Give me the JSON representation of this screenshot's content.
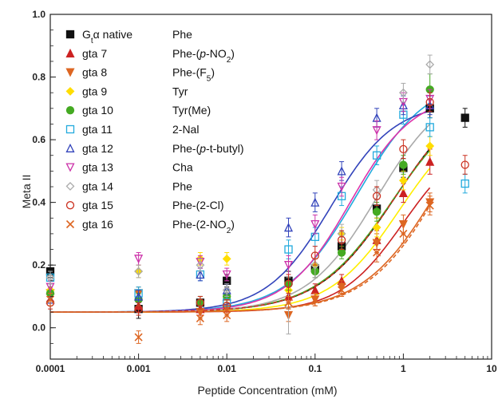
{
  "chart_data": {
    "type": "scatter",
    "title": "",
    "xlabel": "Peptide Concentration (mM)",
    "ylabel": "Meta II",
    "x_scale": "log",
    "xlim": [
      0.0001,
      10
    ],
    "ylim": [
      -0.1,
      1.0
    ],
    "x_ticks": [
      0.0001,
      0.001,
      0.01,
      0.1,
      1,
      10
    ],
    "x_tick_labels": [
      "0.0001",
      "0.001",
      "0.01",
      "0.1",
      "1",
      "10"
    ],
    "y_ticks": [
      0.0,
      0.2,
      0.4,
      0.6,
      0.8,
      1.0
    ],
    "y_tick_labels": [
      "0.0",
      "0.2",
      "0.4",
      "0.6",
      "0.8",
      "1.0"
    ],
    "legend_position": "top-left",
    "series": [
      {
        "name": "Gtα native",
        "label2": "Phe",
        "marker": "square-filled",
        "color": "#111111",
        "x": [
          0.0001,
          0.001,
          0.005,
          0.01,
          0.05,
          0.1,
          0.2,
          0.5,
          1,
          2,
          5
        ],
        "y": [
          0.18,
          0.06,
          0.08,
          0.15,
          0.15,
          0.19,
          0.26,
          0.38,
          0.51,
          0.7,
          0.67
        ],
        "err": [
          0.02,
          0.03,
          0.02,
          0.02,
          0.03,
          0.03,
          0.03,
          0.03,
          0.03,
          0.03,
          0.03
        ],
        "curve": {
          "color": "#000000",
          "max": 0.78,
          "ec50": 0.8,
          "hill": 1.0,
          "dashed": false
        }
      },
      {
        "name": "gta 7",
        "label2": "Phe-(p-NO2)",
        "marker": "triangle-filled",
        "color": "#cc2222",
        "x": [
          0.0001,
          0.001,
          0.005,
          0.01,
          0.05,
          0.1,
          0.2,
          0.5,
          1,
          2
        ],
        "y": [
          0.12,
          0.07,
          0.06,
          0.1,
          0.1,
          0.12,
          0.15,
          0.28,
          0.43,
          0.53
        ],
        "err": [
          0.02,
          0.02,
          0.02,
          0.02,
          0.02,
          0.02,
          0.02,
          0.03,
          0.03,
          0.04
        ],
        "curve": {
          "color": "#cc2222",
          "max": 0.62,
          "ec50": 1.0,
          "hill": 1.2,
          "dashed": false
        }
      },
      {
        "name": "gta 8",
        "label2": "Phe-(F5)",
        "marker": "triangle-down-filled",
        "color": "#dd6622",
        "x": [
          0.0001,
          0.001,
          0.005,
          0.01,
          0.05,
          0.1,
          0.2,
          0.5,
          1,
          2
        ],
        "y": [
          0.11,
          0.11,
          0.05,
          0.06,
          0.04,
          0.09,
          0.13,
          0.27,
          0.33,
          0.4
        ],
        "err": [
          0.02,
          0.02,
          0.02,
          0.02,
          0.02,
          0.02,
          0.02,
          0.03,
          0.03,
          0.03
        ],
        "curve": {
          "color": "#dd6622",
          "max": 0.9,
          "ec50": 3.0,
          "hill": 1.0,
          "dashed": true
        }
      },
      {
        "name": "gta 9",
        "label2": "Tyr",
        "marker": "diamond-filled",
        "color": "#ffdd00",
        "x": [
          0.0001,
          0.001,
          0.005,
          0.01,
          0.05,
          0.1,
          0.2,
          0.5,
          1,
          2
        ],
        "y": [
          0.12,
          0.18,
          0.22,
          0.22,
          0.12,
          0.2,
          0.3,
          0.32,
          0.47,
          0.58
        ],
        "err": [
          0.02,
          0.02,
          0.02,
          0.02,
          0.02,
          0.02,
          0.02,
          0.03,
          0.03,
          0.03
        ],
        "curve": {
          "color": "#ffee00",
          "max": 0.7,
          "ec50": 0.9,
          "hill": 1.1,
          "dashed": false
        }
      },
      {
        "name": "gta 10",
        "label2": "Tyr(Me)",
        "marker": "circle-filled",
        "color": "#44aa22",
        "x": [
          0.0001,
          0.001,
          0.005,
          0.01,
          0.05,
          0.1,
          0.2,
          0.5,
          1,
          2
        ],
        "y": [
          0.11,
          0.09,
          0.08,
          0.1,
          0.14,
          0.18,
          0.24,
          0.37,
          0.52,
          0.76
        ],
        "err": [
          0.02,
          0.02,
          0.02,
          0.02,
          0.02,
          0.02,
          0.02,
          0.03,
          0.03,
          0.05
        ],
        "curve": {
          "color": "#44aa22",
          "max": 0.76,
          "ec50": 0.75,
          "hill": 1.0,
          "dashed": false
        }
      },
      {
        "name": "gta 11",
        "label2": "2-Nal",
        "marker": "square-open",
        "color": "#22aadd",
        "x": [
          0.0001,
          0.001,
          0.005,
          0.01,
          0.05,
          0.1,
          0.2,
          0.5,
          1,
          2,
          5
        ],
        "y": [
          0.16,
          0.11,
          0.17,
          0.08,
          0.25,
          0.29,
          0.42,
          0.55,
          0.68,
          0.64,
          0.46
        ],
        "err": [
          0.02,
          0.02,
          0.02,
          0.02,
          0.03,
          0.03,
          0.03,
          0.03,
          0.03,
          0.03,
          0.03
        ],
        "curve": {
          "color": "#22aadd",
          "max": 0.8,
          "ec50": 0.3,
          "hill": 1.1,
          "dashed": false
        }
      },
      {
        "name": "gta 12",
        "label2": "Phe-(p-t-butyl)",
        "marker": "triangle-open",
        "color": "#3344bb",
        "x": [
          0.0001,
          0.001,
          0.005,
          0.01,
          0.05,
          0.1,
          0.2,
          0.5,
          1,
          2
        ],
        "y": [
          0.09,
          0.1,
          0.17,
          0.12,
          0.32,
          0.4,
          0.5,
          0.67,
          0.71,
          0.71
        ],
        "err": [
          0.02,
          0.02,
          0.02,
          0.02,
          0.03,
          0.03,
          0.03,
          0.03,
          0.03,
          0.03
        ],
        "curve": {
          "color": "#3344bb",
          "max": 0.72,
          "ec50": 0.15,
          "hill": 1.2,
          "dashed": false
        }
      },
      {
        "name": "gta 13",
        "label2": "Cha",
        "marker": "triangle-down-open",
        "color": "#cc33aa",
        "x": [
          0.0001,
          0.001,
          0.005,
          0.01,
          0.05,
          0.1,
          0.2,
          0.5,
          1,
          2
        ],
        "y": [
          0.13,
          0.22,
          0.21,
          0.17,
          0.2,
          0.33,
          0.45,
          0.63,
          0.72,
          0.73
        ],
        "err": [
          0.02,
          0.02,
          0.02,
          0.02,
          0.03,
          0.03,
          0.03,
          0.03,
          0.03,
          0.03
        ],
        "curve": {
          "color": "#dd33aa",
          "max": 0.75,
          "ec50": 0.25,
          "hill": 1.2,
          "dashed": false
        }
      },
      {
        "name": "gta 14",
        "label2": "Phe",
        "marker": "diamond-open",
        "color": "#aaaaaa",
        "x": [
          0.0001,
          0.001,
          0.005,
          0.01,
          0.05,
          0.1,
          0.2,
          0.5,
          1,
          2
        ],
        "y": [
          0.16,
          0.18,
          0.2,
          0.12,
          0.07,
          0.2,
          0.3,
          0.44,
          0.75,
          0.84
        ],
        "err": [
          0.02,
          0.02,
          0.02,
          0.02,
          0.09,
          0.04,
          0.03,
          0.03,
          0.03,
          0.03
        ],
        "curve": {
          "color": "#aaaaaa",
          "max": 0.78,
          "ec50": 0.5,
          "hill": 1.1,
          "dashed": false
        }
      },
      {
        "name": "gta 15",
        "label2": "Phe-(2-Cl)",
        "marker": "circle-open",
        "color": "#cc3322",
        "x": [
          0.0001,
          0.001,
          0.005,
          0.01,
          0.05,
          0.1,
          0.2,
          0.5,
          1,
          2,
          5
        ],
        "y": [
          0.08,
          0.06,
          0.08,
          0.07,
          0.14,
          0.23,
          0.28,
          0.42,
          0.57,
          0.72,
          0.52
        ],
        "err": [
          0.02,
          0.02,
          0.02,
          0.02,
          0.03,
          0.03,
          0.03,
          0.03,
          0.03,
          0.03,
          0.03
        ],
        "curve": {
          "color": "#cc3322",
          "max": 0.78,
          "ec50": 0.8,
          "hill": 1.0,
          "dashed": true
        }
      },
      {
        "name": "gta 16",
        "label2": "Phe-(2-NO2)",
        "marker": "x",
        "color": "#dd6622",
        "x": [
          0.0001,
          0.001,
          0.005,
          0.01,
          0.05,
          0.1,
          0.2,
          0.5,
          1,
          2
        ],
        "y": [
          0.09,
          -0.03,
          0.03,
          0.04,
          0.08,
          0.09,
          0.12,
          0.24,
          0.3,
          0.39
        ],
        "err": [
          0.02,
          0.02,
          0.02,
          0.02,
          0.02,
          0.02,
          0.02,
          0.03,
          0.03,
          0.03
        ],
        "curve": {
          "color": "#dd6622",
          "max": 0.85,
          "ec50": 2.6,
          "hill": 1.0,
          "dashed": false
        }
      }
    ],
    "baseline": 0.05
  }
}
